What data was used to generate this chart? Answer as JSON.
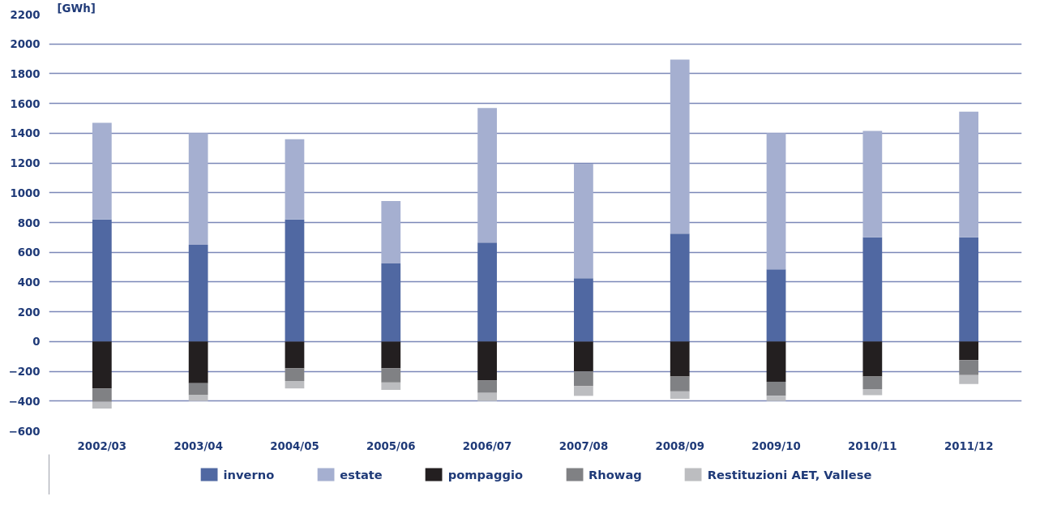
{
  "chart_data": {
    "type": "bar",
    "stacked": true,
    "ylabel": "[GWh]",
    "categories": [
      "2002/03",
      "2003/04",
      "2004/05",
      "2005/06",
      "2006/07",
      "2007/08",
      "2008/09",
      "2009/10",
      "2010/11",
      "2011/12"
    ],
    "series": [
      {
        "name": "inverno",
        "color": "#5068a2",
        "values": [
          820,
          650,
          820,
          525,
          665,
          425,
          725,
          485,
          700,
          700
        ]
      },
      {
        "name": "estate",
        "color": "#a5afd0",
        "values": [
          650,
          750,
          540,
          420,
          905,
          770,
          1170,
          915,
          715,
          845
        ]
      },
      {
        "name": "pompaggio",
        "color": "#231f20",
        "values": [
          -315,
          -280,
          -180,
          -180,
          -260,
          -200,
          -235,
          -270,
          -235,
          -125
        ]
      },
      {
        "name": "Rhowag",
        "color": "#808184",
        "values": [
          -90,
          -80,
          -85,
          -95,
          -85,
          -100,
          -100,
          -95,
          -85,
          -100
        ]
      },
      {
        "name": "Restituzioni AET, Vallese",
        "color": "#bcbdc0",
        "values": [
          -45,
          -40,
          -50,
          -50,
          -55,
          -65,
          -50,
          -35,
          -40,
          -60
        ]
      }
    ],
    "ylim": [
      -600,
      2200
    ],
    "yticks": [
      -600,
      -400,
      -200,
      0,
      200,
      400,
      600,
      800,
      1000,
      1200,
      1400,
      1600,
      1800,
      2000,
      2200
    ],
    "grid": "y",
    "legend": "bottom"
  }
}
